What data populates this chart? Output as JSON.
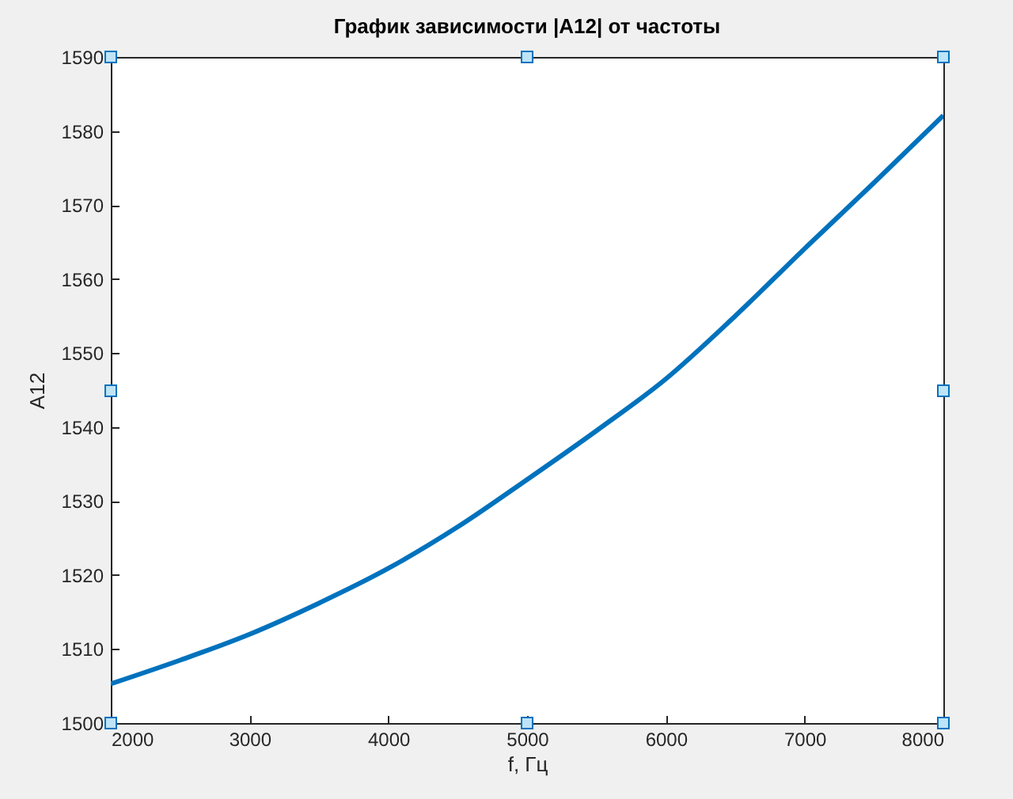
{
  "chart_data": {
    "type": "line",
    "title": "График зависимости |A12| от частоты",
    "xlabel": "f, Гц",
    "ylabel": "A12",
    "x": [
      2000,
      2500,
      3000,
      3500,
      4000,
      4500,
      5000,
      5500,
      6000,
      6500,
      7000,
      7500,
      8000
    ],
    "series": [
      {
        "color": "#0072bd",
        "values": [
          1505.3,
          1508.5,
          1512.0,
          1516.2,
          1520.9,
          1526.5,
          1532.9,
          1539.5,
          1546.5,
          1555.0,
          1564.1,
          1573.0,
          1582.1
        ]
      }
    ],
    "xlim": [
      2000,
      8000
    ],
    "xticks": [
      2000,
      3000,
      4000,
      5000,
      6000,
      7000,
      8000
    ],
    "ylim": [
      1500,
      1590
    ],
    "yticks": [
      1500,
      1510,
      1520,
      1530,
      1540,
      1550,
      1560,
      1570,
      1580,
      1590
    ],
    "grid": false,
    "legend": false,
    "marker": "none",
    "line_style": "solid"
  }
}
